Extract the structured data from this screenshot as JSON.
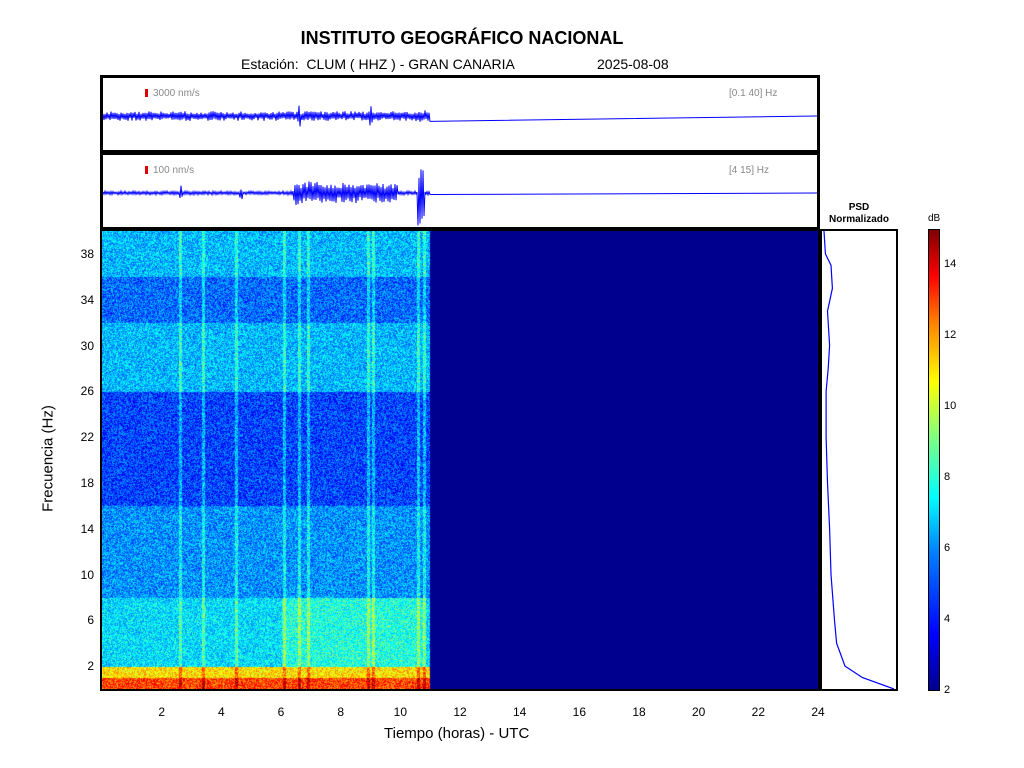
{
  "header": {
    "title": "INSTITUTO GEOGRÁFICO NACIONAL",
    "station_line": "Estación:  CLUM ( HHZ ) - GRAN CANARIA",
    "date": "2025-08-08"
  },
  "traces": [
    {
      "amplitude_scale": "3000 nm/s",
      "band": "[0.1 40] Hz"
    },
    {
      "amplitude_scale": "100 nm/s",
      "band": "[4 15] Hz"
    }
  ],
  "psd": {
    "title_line1": "PSD",
    "title_line2": "Normalizado"
  },
  "colorbar": {
    "unit": "dB",
    "range": [
      2,
      15
    ],
    "ticks": [
      "2",
      "4",
      "6",
      "8",
      "10",
      "12",
      "14"
    ]
  },
  "colors": {
    "trace": "#0000ff",
    "empty_spectrogram": "#00008f"
  },
  "chart_data": {
    "type": "heatmap",
    "title": "INSTITUTO GEOGRÁFICO NACIONAL",
    "subtitle": "Estación:  CLUM ( HHZ ) - GRAN CANARIA",
    "xlabel": "Tiempo (horas) - UTC",
    "ylabel": "Frecuencia  (Hz)",
    "xlim": [
      0,
      24
    ],
    "ylim": [
      0,
      40
    ],
    "x_ticks": [
      "2",
      "4",
      "6",
      "8",
      "10",
      "12",
      "14",
      "16",
      "18",
      "20",
      "22",
      "24"
    ],
    "y_ticks": [
      "2",
      "6",
      "10",
      "14",
      "18",
      "22",
      "26",
      "30",
      "34",
      "38"
    ],
    "data_end_hour": 11.0,
    "colorbar_unit": "dB",
    "colorbar_range": [
      2,
      15
    ],
    "frequency_bands_db": [
      {
        "f_range": [
          0,
          1
        ],
        "db": 12.5
      },
      {
        "f_range": [
          1,
          2
        ],
        "db": 10.5
      },
      {
        "f_range": [
          2,
          8
        ],
        "db": 6.5
      },
      {
        "f_range": [
          8,
          16
        ],
        "db": 5.5
      },
      {
        "f_range": [
          16,
          26
        ],
        "db": 4.5
      },
      {
        "f_range": [
          26,
          32
        ],
        "db": 6.0
      },
      {
        "f_range": [
          32,
          36
        ],
        "db": 5.0
      },
      {
        "f_range": [
          36,
          40
        ],
        "db": 6.0
      }
    ],
    "vertical_events_hours": [
      2.6,
      3.4,
      4.5,
      6.1,
      6.6,
      6.9,
      8.9,
      9.1,
      10.6,
      10.8
    ],
    "psd_profile": [
      {
        "f": 0,
        "v": 1.0
      },
      {
        "f": 1,
        "v": 0.55
      },
      {
        "f": 2,
        "v": 0.3
      },
      {
        "f": 4,
        "v": 0.18
      },
      {
        "f": 6,
        "v": 0.15
      },
      {
        "f": 10,
        "v": 0.1
      },
      {
        "f": 14,
        "v": 0.08
      },
      {
        "f": 18,
        "v": 0.05
      },
      {
        "f": 22,
        "v": 0.03
      },
      {
        "f": 26,
        "v": 0.03
      },
      {
        "f": 28,
        "v": 0.06
      },
      {
        "f": 30,
        "v": 0.08
      },
      {
        "f": 33,
        "v": 0.05
      },
      {
        "f": 35,
        "v": 0.12
      },
      {
        "f": 37,
        "v": 0.1
      },
      {
        "f": 38,
        "v": 0.02
      },
      {
        "f": 40,
        "v": 0.0
      }
    ]
  }
}
